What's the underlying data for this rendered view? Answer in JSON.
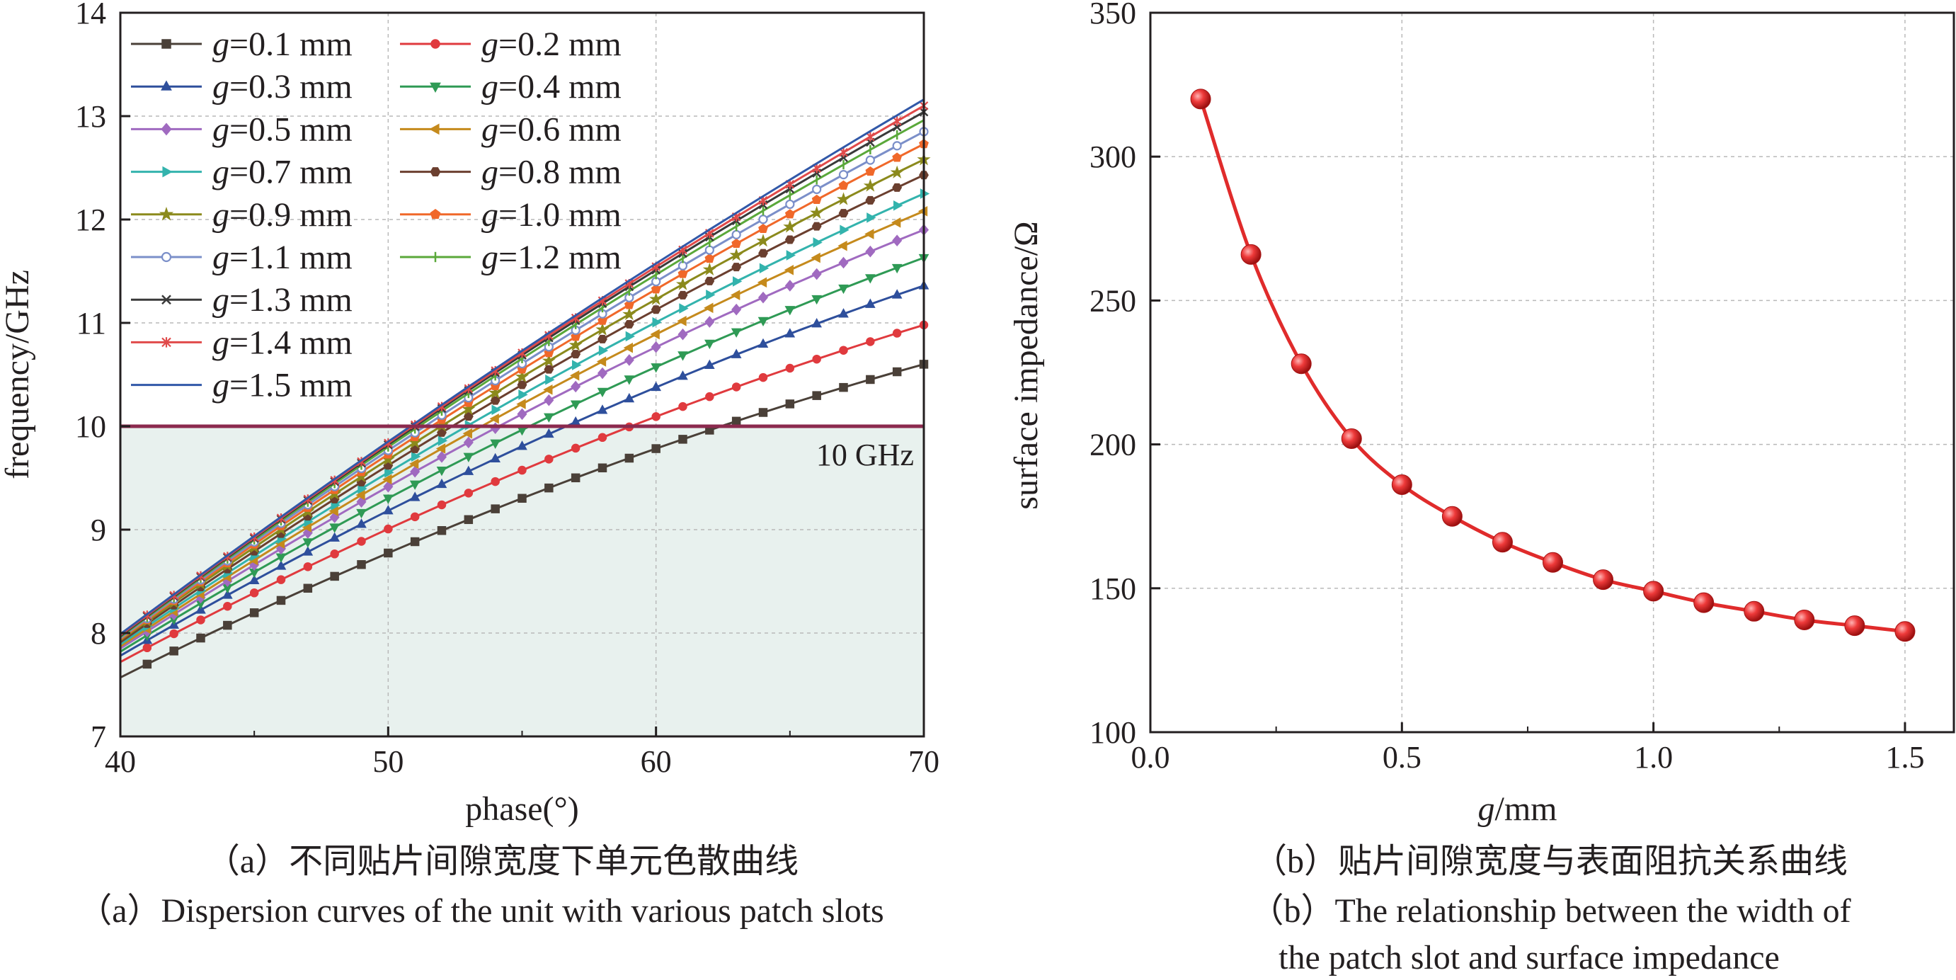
{
  "chart_data": [
    {
      "type": "line",
      "xlabel": "phase(°)",
      "ylabel": "frequency/GHz",
      "xlim": [
        40,
        70
      ],
      "ylim": [
        7,
        14
      ],
      "xticks": [
        "40",
        "50",
        "60",
        "70"
      ],
      "yticks": [
        "7",
        "8",
        "9",
        "10",
        "11",
        "12",
        "13",
        "14"
      ],
      "grid": true,
      "legend_position": "top-left",
      "caption_cn": "（a）不同贴片间隙宽度下单元色散曲线",
      "caption_en": "（a）Dispersion curves of the unit with various patch slots",
      "threshold": {
        "value": 10,
        "label": "10 GHz",
        "color": "#8b2a4e",
        "fill": "#e8f1ee"
      },
      "series": [
        {
          "name": "g=0.1 mm",
          "color": "#4a4038",
          "marker": "square",
          "x": [
            40,
            70
          ],
          "y": [
            7.57,
            10.6
          ]
        },
        {
          "name": "g=0.2 mm",
          "color": "#e03a3e",
          "marker": "circle",
          "x": [
            40,
            70
          ],
          "y": [
            7.72,
            10.98
          ]
        },
        {
          "name": "g=0.3 mm",
          "color": "#2e4f9c",
          "marker": "triUp",
          "x": [
            40,
            70
          ],
          "y": [
            7.78,
            11.36
          ]
        },
        {
          "name": "g=0.4 mm",
          "color": "#2f9a55",
          "marker": "triDown",
          "x": [
            40,
            70
          ],
          "y": [
            7.82,
            11.63
          ]
        },
        {
          "name": "g=0.5 mm",
          "color": "#a06ac0",
          "marker": "diamond",
          "x": [
            40,
            70
          ],
          "y": [
            7.85,
            11.9
          ]
        },
        {
          "name": "g=0.6 mm",
          "color": "#c58a1c",
          "marker": "triLeft",
          "x": [
            40,
            70
          ],
          "y": [
            7.87,
            12.08
          ]
        },
        {
          "name": "g=0.7 mm",
          "color": "#33b3ad",
          "marker": "triRight",
          "x": [
            40,
            70
          ],
          "y": [
            7.89,
            12.25
          ]
        },
        {
          "name": "g=0.8 mm",
          "color": "#6b3f2f",
          "marker": "hexagon",
          "x": [
            40,
            70
          ],
          "y": [
            7.91,
            12.43
          ]
        },
        {
          "name": "g=0.9 mm",
          "color": "#8b8a1c",
          "marker": "star",
          "x": [
            40,
            70
          ],
          "y": [
            7.93,
            12.58
          ]
        },
        {
          "name": "g=1.0 mm",
          "color": "#f0682a",
          "marker": "pentagon",
          "x": [
            40,
            70
          ],
          "y": [
            7.94,
            12.73
          ]
        },
        {
          "name": "g=1.1 mm",
          "color": "#7b8fc9",
          "marker": "ring",
          "x": [
            40,
            70
          ],
          "y": [
            7.95,
            12.85
          ]
        },
        {
          "name": "g=1.2 mm",
          "color": "#5aa83a",
          "marker": "dash",
          "x": [
            40,
            70
          ],
          "y": [
            7.96,
            12.96
          ]
        },
        {
          "name": "g=1.3 mm",
          "color": "#3a3a3a",
          "marker": "x",
          "x": [
            40,
            70
          ],
          "y": [
            7.97,
            13.04
          ]
        },
        {
          "name": "g=1.4 mm",
          "color": "#e04a4a",
          "marker": "asterisk",
          "x": [
            40,
            70
          ],
          "y": [
            7.98,
            13.1
          ]
        },
        {
          "name": "g=1.5 mm",
          "color": "#3158a8",
          "marker": "none",
          "x": [
            40,
            70
          ],
          "y": [
            7.99,
            13.16
          ]
        }
      ]
    },
    {
      "type": "line",
      "xlabel": "g/mm",
      "ylabel": "surface impedance/Ω",
      "xlim": [
        0.0,
        1.6
      ],
      "ylim": [
        100,
        350
      ],
      "xticks": [
        "0.0",
        "0.5",
        "1.0",
        "1.5"
      ],
      "yticks": [
        "100",
        "150",
        "200",
        "250",
        "300",
        "350"
      ],
      "grid": true,
      "caption_cn": "（b）贴片间隙宽度与表面阻抗关系曲线",
      "caption_en_1": "（b）The relationship between the width of",
      "caption_en_2": "the patch slot and surface impedance",
      "series": [
        {
          "color": "#e02b2b",
          "x": [
            0.1,
            0.2,
            0.3,
            0.4,
            0.5,
            0.6,
            0.7,
            0.8,
            0.9,
            1.0,
            1.1,
            1.2,
            1.3,
            1.4,
            1.5
          ],
          "y": [
            320,
            266,
            228,
            202,
            186,
            175,
            166,
            159,
            153,
            149,
            145,
            142,
            139,
            137,
            135
          ]
        }
      ]
    }
  ]
}
